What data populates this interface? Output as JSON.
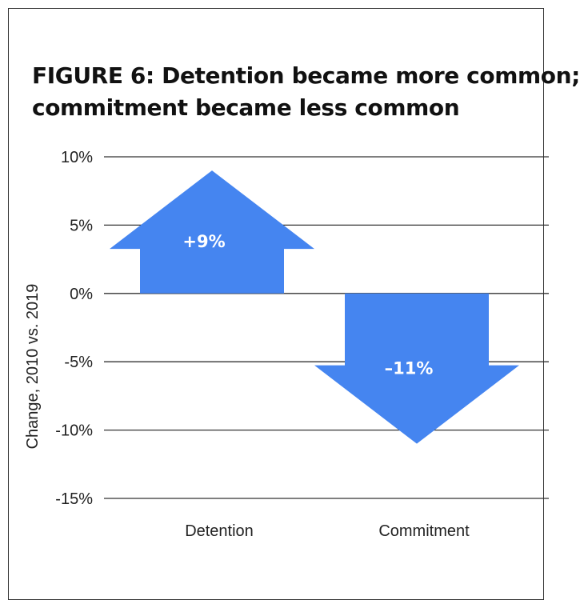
{
  "chart_data": {
    "type": "bar",
    "title": "FIGURE 6: Detention became more common; commitment became less common",
    "title_lines": [
      "FIGURE 6: Detention became more common;",
      "commitment became less common"
    ],
    "ylabel": "Change, 2010 vs. 2019",
    "xlabel": "",
    "categories": [
      "Detention",
      "Commitment"
    ],
    "values": [
      9,
      -11
    ],
    "value_labels": [
      "+9%",
      "–11%"
    ],
    "ylim": [
      -15,
      10
    ],
    "yticks": [
      10,
      5,
      0,
      -5,
      -10,
      -15
    ],
    "ytick_labels": [
      "10%",
      "5%",
      "0%",
      "-5%",
      "-10%",
      "-15%"
    ],
    "grid": true,
    "legend": "none",
    "mark_shape": "arrow",
    "bar_color": "#4585f0"
  }
}
